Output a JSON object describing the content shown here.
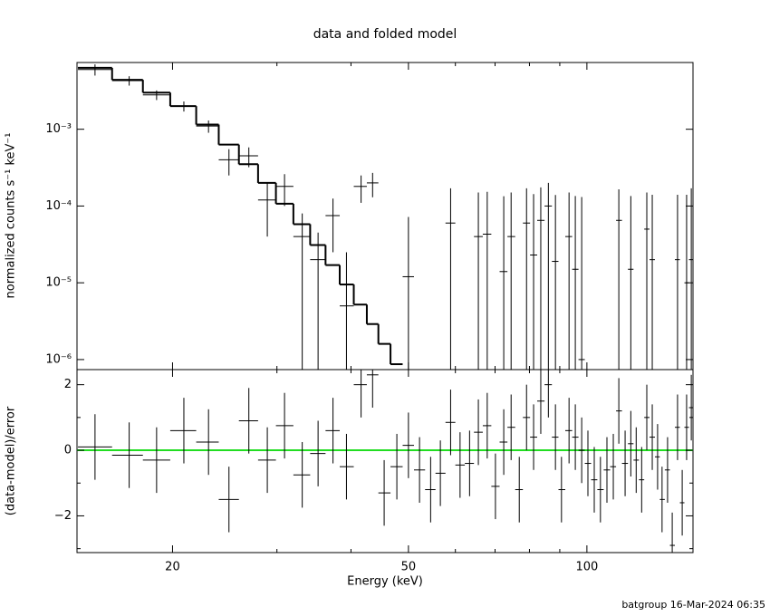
{
  "chart_data": {
    "type": "errorbar",
    "title": "data and folded model",
    "xlabel": "Energy (keV)",
    "footer": "batgroup 16-Mar-2024 06:35",
    "xscale": "log",
    "xlim": [
      13.8,
      151
    ],
    "xticks": [
      20,
      50,
      100
    ],
    "xminor": [
      30,
      40,
      60,
      70,
      80,
      90
    ],
    "x": [
      14.8,
      16.9,
      18.8,
      20.9,
      23.0,
      24.9,
      26.9,
      28.9,
      30.9,
      33.1,
      35.2,
      37.3,
      39.3,
      41.6,
      43.5,
      45.5,
      47.8,
      50.0,
      52.2,
      54.5,
      56.6,
      58.9,
      61.1,
      63.4,
      65.6,
      67.9,
      70.1,
      72.4,
      74.5,
      76.9,
      79.1,
      81.3,
      83.6,
      86.1,
      88.5,
      90.6,
      93.3,
      95.6,
      98.0,
      100.4,
      102.9,
      105.4,
      108.1,
      110.8,
      113.2,
      116.0,
      118.6,
      121.1,
      123.7,
      126.2,
      128.9,
      131.6,
      133.9,
      136.8,
      139.3,
      142.2,
      144.8,
      147.3,
      150.0
    ],
    "top": {
      "ylabel": "normalized counts s⁻¹ keV⁻¹",
      "yscale": "log",
      "ylim": [
        7.4e-07,
        0.0074
      ],
      "yticks": [
        {
          "value": 0.001,
          "label": "10⁻³"
        },
        {
          "value": 0.0001,
          "label": "10⁻⁴"
        },
        {
          "value": 1e-05,
          "label": "10⁻⁵"
        },
        {
          "value": 1e-06,
          "label": "10⁻⁶"
        }
      ],
      "color": "#000000",
      "values": [
        0.006,
        0.0043,
        0.0028,
        0.002,
        0.0011,
        0.0004,
        0.00045,
        0.00012,
        0.00018,
        4e-05,
        2e-05,
        7.5e-05,
        5e-06,
        0.00018,
        0.0002,
        null,
        null,
        1.2e-05,
        null,
        null,
        null,
        6e-05,
        null,
        null,
        4e-05,
        4.3e-05,
        null,
        1.4e-05,
        4e-05,
        null,
        6e-05,
        2.3e-05,
        6.5e-05,
        0.0001,
        1.9e-05,
        null,
        4e-05,
        1.5e-05,
        1e-06,
        null,
        null,
        null,
        null,
        null,
        6.5e-05,
        null,
        1.5e-05,
        null,
        null,
        5e-05,
        2e-05,
        null,
        null,
        null,
        null,
        2e-05,
        null,
        1e-05,
        2e-05
      ],
      "errors": [
        0.001,
        0.0006,
        0.0004,
        0.0003,
        0.0002,
        0.00015,
        0.00013,
        8e-05,
        8e-05,
        4e-05,
        2.5e-05,
        5e-05,
        2e-05,
        7e-05,
        7e-05,
        null,
        null,
        6e-05,
        null,
        null,
        null,
        0.00011,
        null,
        null,
        0.00011,
        0.00011,
        null,
        0.00012,
        0.00011,
        null,
        0.00011,
        0.00012,
        0.00011,
        0.0001,
        0.00012,
        null,
        0.00011,
        0.00012,
        0.00013,
        null,
        null,
        null,
        null,
        null,
        0.0001,
        null,
        0.00012,
        null,
        null,
        0.0001,
        0.00012,
        null,
        null,
        null,
        null,
        0.00012,
        null,
        0.00013,
        0.00015
      ],
      "model": [
        0.0063,
        0.0044,
        0.003,
        0.002,
        0.00115,
        0.00063,
        0.00035,
        0.0002,
        0.000107,
        5.8e-05,
        3.1e-05,
        1.7e-05,
        9.5e-06,
        5.2e-06,
        2.9e-06,
        1.6e-06,
        8.7e-07,
        null,
        null,
        null,
        null,
        null,
        null,
        null,
        null,
        null,
        null,
        null,
        null,
        null,
        null,
        null,
        null,
        null,
        null,
        null,
        null,
        null,
        null,
        null,
        null,
        null,
        null,
        null,
        null,
        null,
        null,
        null,
        null,
        null,
        null,
        null,
        null,
        null,
        null,
        null,
        null,
        null,
        null
      ]
    },
    "bottom": {
      "ylabel": "(data-model)/error",
      "ylim": [
        -3.12,
        2.46
      ],
      "yticks": [
        {
          "value": -2,
          "label": "−2"
        },
        0,
        2
      ],
      "yminor": [
        -3,
        -1,
        1
      ],
      "color": "#000000",
      "zero_line_color": "#22dd22",
      "values": [
        0.1,
        -0.15,
        -0.3,
        0.6,
        0.25,
        -1.5,
        0.9,
        -0.3,
        0.75,
        -0.75,
        -0.1,
        0.6,
        -0.5,
        2.0,
        2.3,
        -1.3,
        -0.5,
        0.15,
        -0.6,
        -1.2,
        -0.7,
        0.85,
        -0.45,
        -0.4,
        0.55,
        0.75,
        -1.1,
        0.25,
        0.7,
        -1.2,
        1.0,
        0.4,
        1.5,
        2.0,
        0.4,
        -1.2,
        0.6,
        0.4,
        0.0,
        -0.4,
        -0.9,
        -1.2,
        -0.6,
        -0.5,
        1.2,
        -0.4,
        0.2,
        -0.3,
        -0.9,
        1.0,
        0.4,
        -0.2,
        -1.5,
        -0.6,
        -2.9,
        0.7,
        -1.6,
        0.7,
        1.3
      ],
      "errors": [
        1,
        1,
        1,
        1,
        1,
        1,
        1,
        1,
        1,
        1,
        1,
        1,
        1,
        1,
        1,
        1,
        1,
        1,
        1,
        1,
        1,
        1,
        1,
        1,
        1,
        1,
        1,
        1,
        1,
        1,
        1,
        1,
        1,
        1,
        1,
        1,
        1,
        1,
        1,
        1,
        1,
        1,
        1,
        1,
        1,
        1,
        1,
        1,
        1,
        1,
        1,
        1,
        1,
        1,
        1,
        1,
        1,
        1,
        1
      ]
    }
  }
}
